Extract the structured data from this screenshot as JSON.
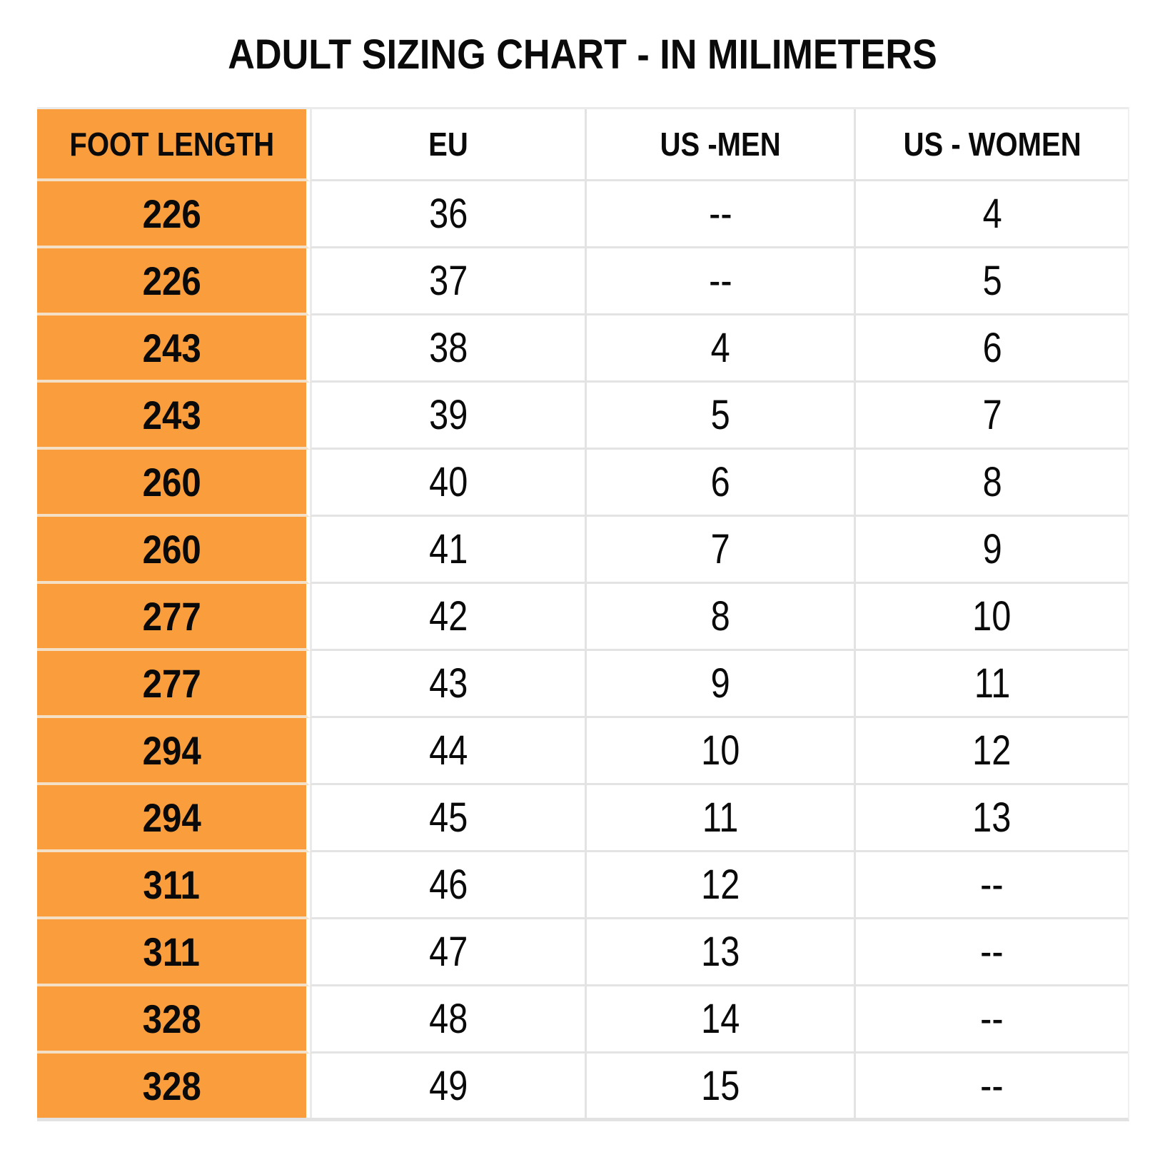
{
  "title": "ADULT SIZING CHART - IN MILIMETERS",
  "colors": {
    "accent_orange": "#F99D3D",
    "orange_row_divider": "#F3E0C6",
    "grid_line": "#E3E3E3",
    "text": "#0A0A0A",
    "background": "#FFFFFF"
  },
  "chart_data": {
    "type": "table",
    "title": "ADULT SIZING CHART - IN MILIMETERS",
    "columns": [
      "FOOT LENGTH",
      "EU",
      "US -MEN",
      "US - WOMEN"
    ],
    "rows": [
      [
        "226",
        "36",
        "--",
        "4"
      ],
      [
        "226",
        "37",
        "--",
        "5"
      ],
      [
        "243",
        "38",
        "4",
        "6"
      ],
      [
        "243",
        "39",
        "5",
        "7"
      ],
      [
        "260",
        "40",
        "6",
        "8"
      ],
      [
        "260",
        "41",
        "7",
        "9"
      ],
      [
        "277",
        "42",
        "8",
        "10"
      ],
      [
        "277",
        "43",
        "9",
        "11"
      ],
      [
        "294",
        "44",
        "10",
        "12"
      ],
      [
        "294",
        "45",
        "11",
        "13"
      ],
      [
        "311",
        "46",
        "12",
        "--"
      ],
      [
        "311",
        "47",
        "13",
        "--"
      ],
      [
        "328",
        "48",
        "14",
        "--"
      ],
      [
        "328",
        "49",
        "15",
        "--"
      ]
    ]
  }
}
